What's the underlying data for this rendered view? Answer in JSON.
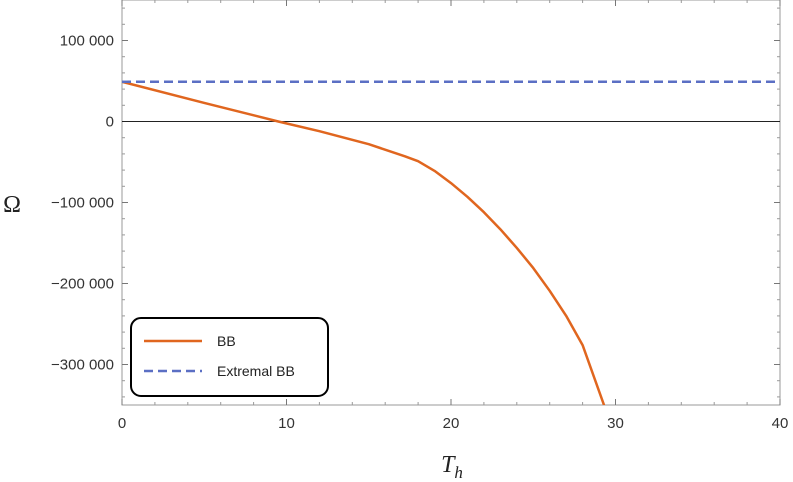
{
  "chart_data": {
    "type": "line",
    "xlabel": "T",
    "xlabel_subscript": "h",
    "ylabel": "Ω",
    "xlim": [
      0,
      40
    ],
    "ylim": [
      -350000,
      150000
    ],
    "x_ticks": [
      0,
      10,
      20,
      30,
      40
    ],
    "x_tick_labels": [
      "0",
      "10",
      "20",
      "30",
      "40"
    ],
    "y_ticks": [
      100000,
      0,
      -100000,
      -200000,
      -300000
    ],
    "y_tick_labels": [
      "100 000",
      "0",
      "−100 000",
      "−200 000",
      "−300 000"
    ],
    "legend_position": "bottom-left",
    "zero_line": true,
    "series": [
      {
        "name": "BB",
        "color": "#e0661f",
        "style": "solid",
        "x": [
          0,
          5,
          9.5,
          12,
          15,
          17.2,
          18,
          19,
          20,
          21,
          22,
          23,
          24,
          25,
          26,
          27,
          28,
          29.3
        ],
        "y": [
          49000,
          23000,
          0,
          -12000,
          -28000,
          -43000,
          -49000,
          -61000,
          -76000,
          -93000,
          -112000,
          -133000,
          -156000,
          -181000,
          -209000,
          -240000,
          -276000,
          -350000
        ]
      },
      {
        "name": "Extremal BB",
        "color": "#5b6fc4",
        "style": "dashed",
        "x": [
          0,
          40
        ],
        "y": [
          49000,
          49000
        ]
      }
    ]
  }
}
